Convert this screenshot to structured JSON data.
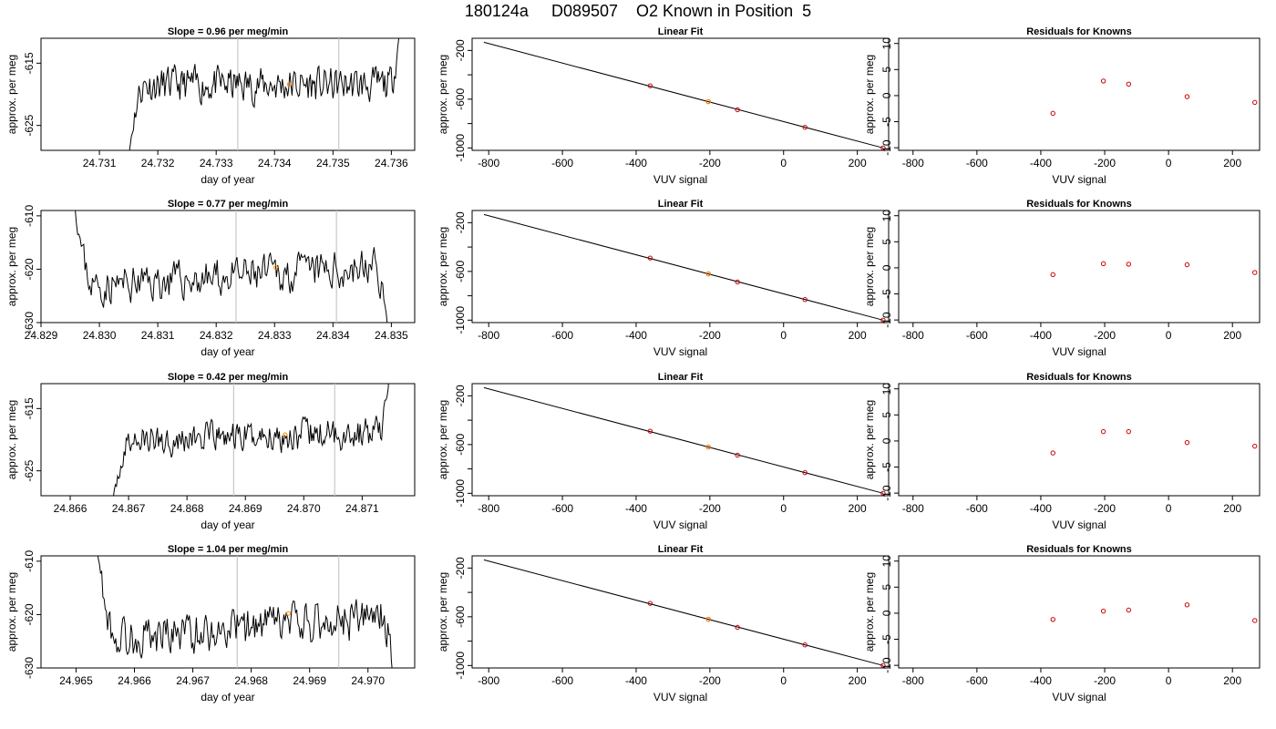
{
  "figure": {
    "title": "180124a     D089507    O2 Known in Position  5"
  },
  "chart_data": [
    {
      "type": "line",
      "title": "Slope =  0.96  per meg/min",
      "xlabel": "day of year",
      "ylabel": "approx. per meg",
      "xlim": [
        24.73,
        24.7364
      ],
      "ylim": [
        -629,
        -611
      ],
      "xticks": [
        "24.731",
        "24.732",
        "24.733",
        "24.734",
        "24.735",
        "24.736"
      ],
      "yticks": [
        -625,
        -615
      ],
      "vlines": [
        24.73337,
        24.7351
      ],
      "marker": {
        "x": 24.73425,
        "y": -618.4,
        "color": "#ff8c00"
      },
      "trace": {
        "start": 24.7314,
        "end": 24.7362,
        "y_from": -640,
        "baseline": -618.5,
        "trend": 0.0,
        "noise": 1.6,
        "y_to": -603,
        "seed": 11
      },
      "line_color": "#000000"
    },
    {
      "type": "line",
      "title": "Linear Fit",
      "xlabel": "VUV signal",
      "ylabel": "approx. per meg",
      "xlim": [
        -845,
        285
      ],
      "ylim": [
        -1020,
        -100
      ],
      "xticks": [
        -800,
        -600,
        -400,
        -200,
        0,
        200
      ],
      "yticks": [
        -200,
        -600,
        -1000
      ],
      "fit_line": {
        "x": [
          -813,
          270
        ],
        "y": [
          -133,
          -1000
        ]
      },
      "points": [
        {
          "x": -362,
          "y": -490,
          "color": "#cc0000"
        },
        {
          "x": -204,
          "y": -620,
          "color": "#cc0000"
        },
        {
          "x": -204,
          "y": -620,
          "color": "#ff8c00"
        },
        {
          "x": -125,
          "y": -687,
          "color": "#cc0000"
        },
        {
          "x": 58,
          "y": -831,
          "color": "#cc0000"
        },
        {
          "x": 270,
          "y": -1000,
          "color": "#cc0000"
        }
      ]
    },
    {
      "type": "scatter",
      "title": "Residuals for Knowns",
      "xlabel": "VUV signal",
      "ylabel": "approx. per meg",
      "xlim": [
        -845,
        285
      ],
      "ylim": [
        -10.5,
        11
      ],
      "xticks": [
        -800,
        -600,
        -400,
        -200,
        0,
        200
      ],
      "yticks": [
        -10,
        -5,
        0,
        5,
        10
      ],
      "points": [
        {
          "x": -362,
          "y": -3.4,
          "color": "#cc0000"
        },
        {
          "x": -204,
          "y": 2.8,
          "color": "#cc0000"
        },
        {
          "x": -125,
          "y": 2.2,
          "color": "#cc0000"
        },
        {
          "x": 58,
          "y": -0.2,
          "color": "#cc0000"
        },
        {
          "x": 270,
          "y": -1.3,
          "color": "#cc0000"
        }
      ]
    },
    {
      "type": "line",
      "title": "Slope =  0.77  per meg/min",
      "xlabel": "day of year",
      "ylabel": "approx. per meg",
      "xlim": [
        24.829,
        24.8354
      ],
      "ylim": [
        -630,
        -609
      ],
      "xticks": [
        "24.829",
        "24.830",
        "24.831",
        "24.832",
        "24.833",
        "24.834",
        "24.835"
      ],
      "yticks": [
        -630,
        -620,
        -610
      ],
      "vlines": [
        24.83234,
        24.83406
      ],
      "marker": {
        "x": 24.83302,
        "y": -619.7,
        "color": "#ff8c00"
      },
      "trace": {
        "start": 24.8295,
        "end": 24.835,
        "y_from": -600,
        "baseline": -621.5,
        "trend": 4.0,
        "noise": 2.0,
        "y_to": -640,
        "seed": 23
      },
      "line_color": "#000000"
    },
    {
      "type": "line",
      "title": "Linear Fit",
      "xlabel": "VUV signal",
      "ylabel": "approx. per meg",
      "xlim": [
        -845,
        285
      ],
      "ylim": [
        -1020,
        -100
      ],
      "xticks": [
        -800,
        -600,
        -400,
        -200,
        0,
        200
      ],
      "yticks": [
        -200,
        -600,
        -1000
      ],
      "fit_line": {
        "x": [
          -813,
          270
        ],
        "y": [
          -133,
          -1000
        ]
      },
      "points": [
        {
          "x": -362,
          "y": -490,
          "color": "#cc0000"
        },
        {
          "x": -204,
          "y": -620,
          "color": "#cc0000"
        },
        {
          "x": -204,
          "y": -620,
          "color": "#ff8c00"
        },
        {
          "x": -125,
          "y": -687,
          "color": "#cc0000"
        },
        {
          "x": 58,
          "y": -831,
          "color": "#cc0000"
        },
        {
          "x": 270,
          "y": -1000,
          "color": "#cc0000"
        }
      ]
    },
    {
      "type": "scatter",
      "title": "Residuals for Knowns",
      "xlabel": "VUV signal",
      "ylabel": "approx. per meg",
      "xlim": [
        -845,
        285
      ],
      "ylim": [
        -10.5,
        11
      ],
      "xticks": [
        -800,
        -600,
        -400,
        -200,
        0,
        200
      ],
      "yticks": [
        -10,
        -5,
        0,
        5,
        10
      ],
      "points": [
        {
          "x": -362,
          "y": -1.3,
          "color": "#cc0000"
        },
        {
          "x": -204,
          "y": 0.8,
          "color": "#cc0000"
        },
        {
          "x": -125,
          "y": 0.7,
          "color": "#cc0000"
        },
        {
          "x": 58,
          "y": 0.6,
          "color": "#cc0000"
        },
        {
          "x": 270,
          "y": -0.9,
          "color": "#cc0000"
        }
      ]
    },
    {
      "type": "line",
      "title": "Slope =  0.42  per meg/min",
      "xlabel": "day of year",
      "ylabel": "approx. per meg",
      "xlim": [
        24.8655,
        24.8719
      ],
      "ylim": [
        -629,
        -611
      ],
      "xticks": [
        "24.866",
        "24.867",
        "24.868",
        "24.869",
        "24.870",
        "24.871"
      ],
      "yticks": [
        -625,
        -615
      ],
      "vlines": [
        24.8688,
        24.87053
      ],
      "marker": {
        "x": 24.86968,
        "y": -619.2,
        "color": "#ff8c00"
      },
      "trace": {
        "start": 24.8667,
        "end": 24.8715,
        "y_from": -632,
        "baseline": -619.5,
        "trend": 1.5,
        "noise": 1.4,
        "y_to": -606,
        "seed": 37
      },
      "line_color": "#000000"
    },
    {
      "type": "line",
      "title": "Linear Fit",
      "xlabel": "VUV signal",
      "ylabel": "approx. per meg",
      "xlim": [
        -845,
        285
      ],
      "ylim": [
        -1020,
        -100
      ],
      "xticks": [
        -800,
        -600,
        -400,
        -200,
        0,
        200
      ],
      "yticks": [
        -200,
        -600,
        -1000
      ],
      "fit_line": {
        "x": [
          -813,
          270
        ],
        "y": [
          -133,
          -1000
        ]
      },
      "points": [
        {
          "x": -362,
          "y": -490,
          "color": "#cc0000"
        },
        {
          "x": -204,
          "y": -620,
          "color": "#cc0000"
        },
        {
          "x": -204,
          "y": -620,
          "color": "#ff8c00"
        },
        {
          "x": -125,
          "y": -687,
          "color": "#cc0000"
        },
        {
          "x": 58,
          "y": -831,
          "color": "#cc0000"
        },
        {
          "x": 270,
          "y": -1000,
          "color": "#cc0000"
        }
      ]
    },
    {
      "type": "scatter",
      "title": "Residuals for Knowns",
      "xlabel": "VUV signal",
      "ylabel": "approx. per meg",
      "xlim": [
        -845,
        285
      ],
      "ylim": [
        -10.5,
        11
      ],
      "xticks": [
        -800,
        -600,
        -400,
        -200,
        0,
        200
      ],
      "yticks": [
        -10,
        -5,
        0,
        5,
        10
      ],
      "points": [
        {
          "x": -362,
          "y": -2.3,
          "color": "#cc0000"
        },
        {
          "x": -204,
          "y": 1.8,
          "color": "#cc0000"
        },
        {
          "x": -125,
          "y": 1.8,
          "color": "#cc0000"
        },
        {
          "x": 58,
          "y": -0.3,
          "color": "#cc0000"
        },
        {
          "x": 270,
          "y": -1.0,
          "color": "#cc0000"
        }
      ]
    },
    {
      "type": "line",
      "title": "Slope =  1.04  per meg/min",
      "xlabel": "day of year",
      "ylabel": "approx. per meg",
      "xlim": [
        24.9644,
        24.9708
      ],
      "ylim": [
        -630,
        -609
      ],
      "xticks": [
        "24.965",
        "24.966",
        "24.967",
        "24.968",
        "24.969",
        "24.970"
      ],
      "yticks": [
        -630,
        -620,
        -610
      ],
      "vlines": [
        24.96776,
        24.9695
      ],
      "marker": {
        "x": 24.96864,
        "y": -619.8,
        "color": "#ff8c00"
      },
      "trace": {
        "start": 24.9653,
        "end": 24.9705,
        "y_from": -600,
        "baseline": -622.5,
        "trend": 4.5,
        "noise": 2.2,
        "y_to": -640,
        "seed": 53
      },
      "line_color": "#000000"
    },
    {
      "type": "line",
      "title": "Linear Fit",
      "xlabel": "VUV signal",
      "ylabel": "approx. per meg",
      "xlim": [
        -845,
        285
      ],
      "ylim": [
        -1020,
        -100
      ],
      "xticks": [
        -800,
        -600,
        -400,
        -200,
        0,
        200
      ],
      "yticks": [
        -200,
        -600,
        -1000
      ],
      "fit_line": {
        "x": [
          -813,
          270
        ],
        "y": [
          -133,
          -1000
        ]
      },
      "points": [
        {
          "x": -362,
          "y": -490,
          "color": "#cc0000"
        },
        {
          "x": -204,
          "y": -620,
          "color": "#cc0000"
        },
        {
          "x": -204,
          "y": -620,
          "color": "#ff8c00"
        },
        {
          "x": -125,
          "y": -687,
          "color": "#cc0000"
        },
        {
          "x": 58,
          "y": -831,
          "color": "#cc0000"
        },
        {
          "x": 270,
          "y": -1000,
          "color": "#cc0000"
        }
      ]
    },
    {
      "type": "scatter",
      "title": "Residuals for Knowns",
      "xlabel": "VUV signal",
      "ylabel": "approx. per meg",
      "xlim": [
        -845,
        285
      ],
      "ylim": [
        -10.5,
        11
      ],
      "xticks": [
        -800,
        -600,
        -400,
        -200,
        0,
        200
      ],
      "yticks": [
        -10,
        -5,
        0,
        5,
        10
      ],
      "points": [
        {
          "x": -362,
          "y": -1.2,
          "color": "#cc0000"
        },
        {
          "x": -204,
          "y": 0.4,
          "color": "#cc0000"
        },
        {
          "x": -125,
          "y": 0.6,
          "color": "#cc0000"
        },
        {
          "x": 58,
          "y": 1.6,
          "color": "#cc0000"
        },
        {
          "x": 270,
          "y": -1.4,
          "color": "#cc0000"
        }
      ]
    }
  ]
}
